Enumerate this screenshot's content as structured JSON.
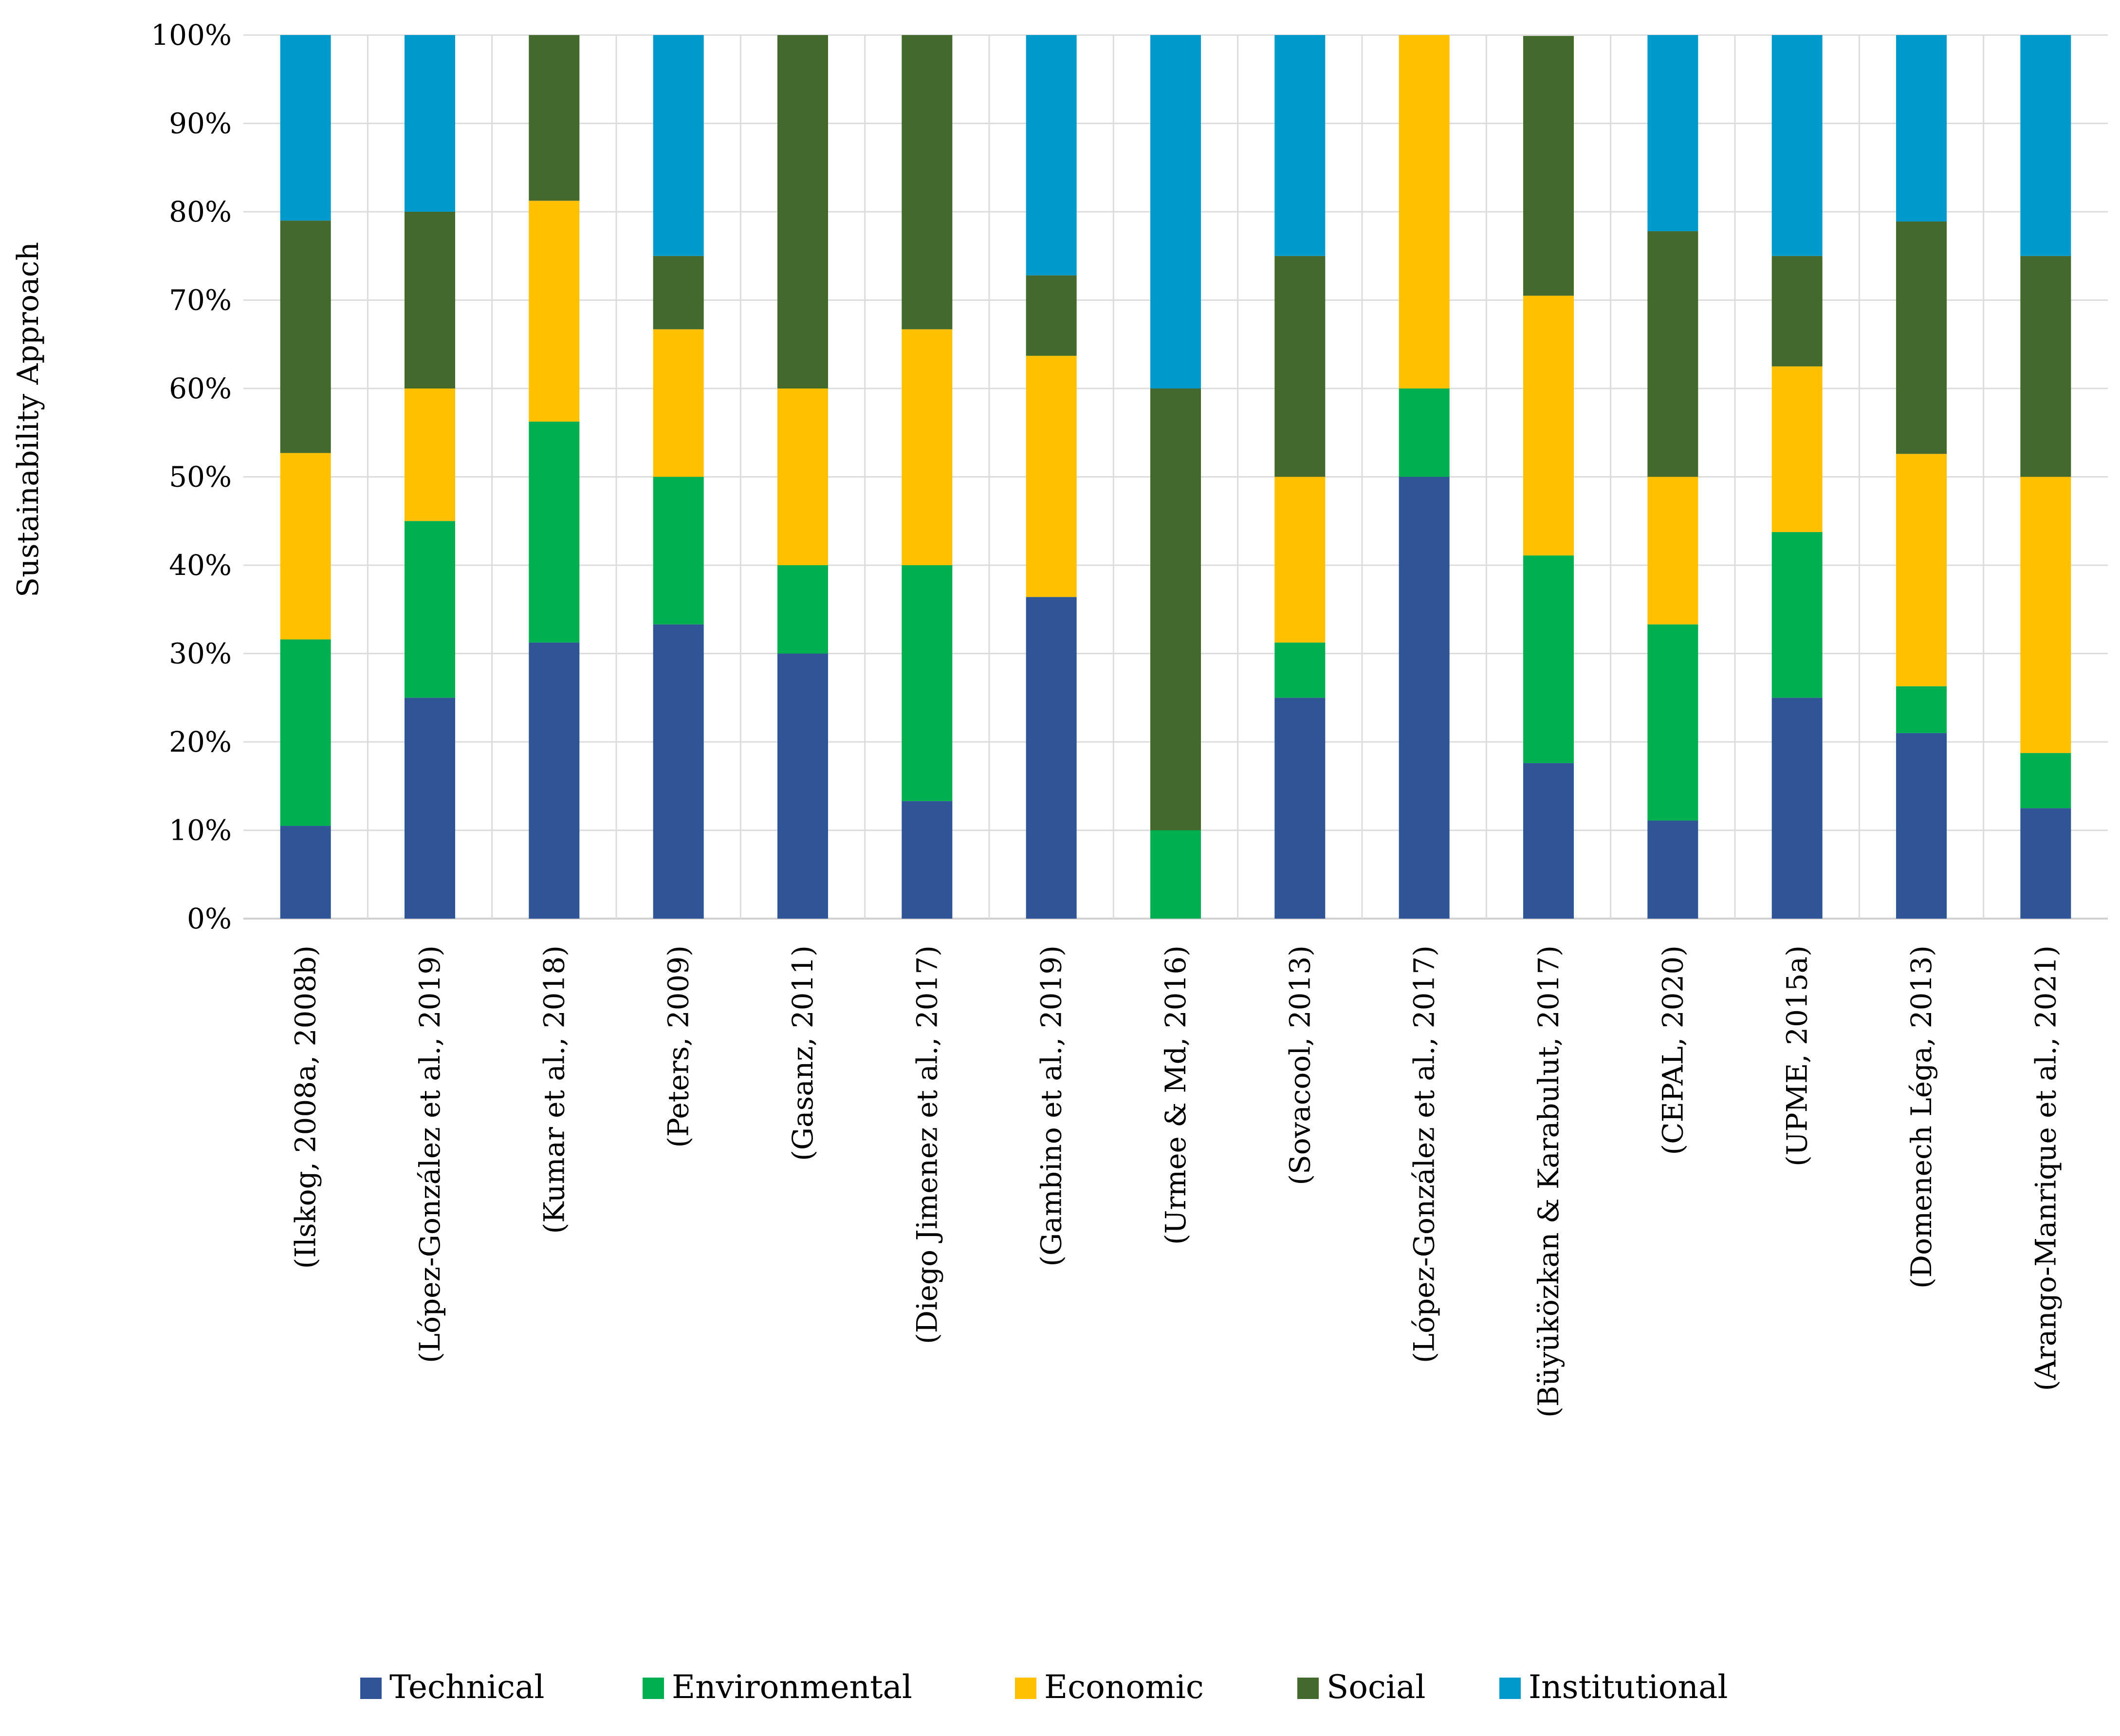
{
  "chart_data": {
    "type": "bar",
    "stacked": true,
    "percent": true,
    "title": "",
    "xlabel": "",
    "ylabel": "Sustainability Approach",
    "ylim": [
      0,
      100
    ],
    "yticks": [
      "0%",
      "10%",
      "20%",
      "30%",
      "40%",
      "50%",
      "60%",
      "70%",
      "80%",
      "90%",
      "100%"
    ],
    "grid": true,
    "legend_position": "bottom",
    "categories": [
      "(Ilskog, 2008a, 2008b)",
      "(López-González et al., 2019)",
      "(Kumar et al., 2018)",
      "(Peters, 2009)",
      "(Gasanz, 2011)",
      "(Diego Jimenez et al., 2017)",
      "(Gambino et al., 2019)",
      "(Urmee & Md, 2016)",
      "(Sovacool, 2013)",
      "(López-González et al., 2017)",
      "(Büyüközkan & Karabulut, 2017)",
      "(CEPAL, 2020)",
      "(UPME, 2015a)",
      "(Domenech Léga, 2013)",
      "(Arango-Manrique et al., 2021)"
    ],
    "series": [
      {
        "name": "Technical",
        "color": "#2F5597",
        "values": [
          10.5,
          25,
          31.25,
          33.3,
          30,
          13.3,
          36.4,
          0,
          25,
          50,
          17.6,
          11.1,
          25,
          21,
          12.5
        ]
      },
      {
        "name": "Environmental",
        "color": "#00B050",
        "values": [
          21.1,
          20,
          25,
          16.7,
          10,
          26.7,
          0,
          10,
          6.25,
          10,
          23.5,
          22.2,
          18.75,
          5.3,
          6.25
        ]
      },
      {
        "name": "Economic",
        "color": "#FFC000",
        "values": [
          21.1,
          15,
          25,
          16.7,
          20,
          26.7,
          27.3,
          0,
          18.75,
          40,
          29.4,
          16.7,
          18.75,
          26.3,
          31.25
        ]
      },
      {
        "name": "Social",
        "color": "#44692C",
        "values": [
          26.3,
          20,
          18.75,
          8.3,
          40,
          33.3,
          9.1,
          50,
          25,
          0,
          29.4,
          27.8,
          12.5,
          26.3,
          25
        ]
      },
      {
        "name": "Institutional",
        "color": "#0099CC",
        "values": [
          21.0,
          20,
          0,
          25,
          0,
          0,
          27.2,
          40,
          25,
          0,
          0,
          22.2,
          25,
          21.1,
          25
        ]
      }
    ]
  }
}
